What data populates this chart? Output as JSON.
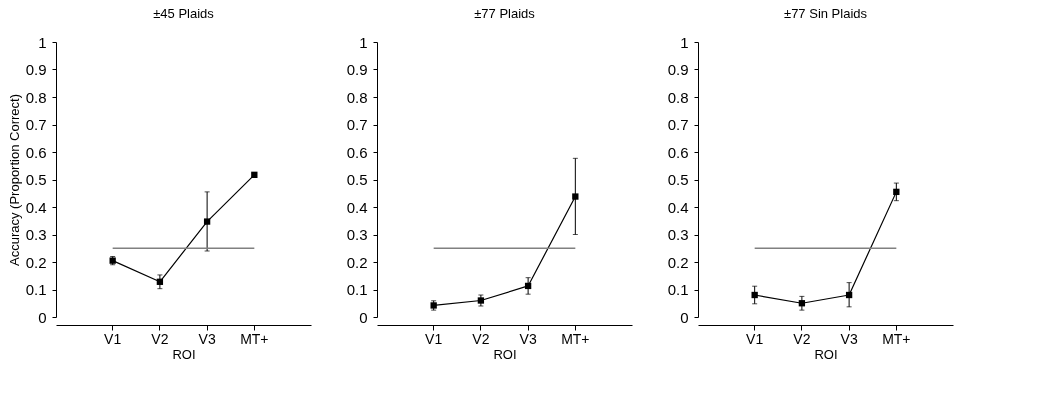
{
  "chart_data": [
    {
      "type": "line",
      "title": "±45 Plaids",
      "xlabel": "ROI",
      "ylabel": "Accuracy (Proportion Correct)",
      "categories": [
        "V1",
        "V2",
        "V3",
        "MT+"
      ],
      "ylim": [
        0,
        1
      ],
      "yticks": [
        0,
        0.1,
        0.2,
        0.3,
        0.4,
        0.5,
        0.6,
        0.7,
        0.8,
        0.9,
        1
      ],
      "marker": "square",
      "grid": false,
      "series": [
        {
          "color": "#000000",
          "values": [
            0.205,
            0.128,
            0.347,
            0.517
          ],
          "errors": [
            0.015,
            0.025,
            [
              0.24,
              0.455
            ],
            0.005
          ]
        }
      ],
      "ref_lines": [
        {
          "axis": "y",
          "value": 0.25,
          "color": "#808080"
        }
      ]
    },
    {
      "type": "line",
      "title": "±77 Plaids",
      "xlabel": "ROI",
      "categories": [
        "V1",
        "V2",
        "V3",
        "MT+"
      ],
      "ylim": [
        0,
        1
      ],
      "yticks": [
        0,
        0.1,
        0.2,
        0.3,
        0.4,
        0.5,
        0.6,
        0.7,
        0.8,
        0.9,
        1
      ],
      "marker": "square",
      "grid": false,
      "series": [
        {
          "color": "#000000",
          "values": [
            0.042,
            0.06,
            0.113,
            0.438
          ],
          "errors": [
            0.017,
            0.02,
            0.03,
            [
              0.3,
              0.577
            ]
          ]
        }
      ],
      "ref_lines": [
        {
          "axis": "y",
          "value": 0.25,
          "color": "#808080"
        }
      ]
    },
    {
      "type": "line",
      "title": "±77 Sin Plaids",
      "xlabel": "ROI",
      "categories": [
        "V1",
        "V2",
        "V3",
        "MT+"
      ],
      "ylim": [
        0,
        1
      ],
      "yticks": [
        0,
        0.1,
        0.2,
        0.3,
        0.4,
        0.5,
        0.6,
        0.7,
        0.8,
        0.9,
        1
      ],
      "marker": "square",
      "grid": false,
      "series": [
        {
          "color": "#000000",
          "values": [
            0.08,
            0.05,
            0.08,
            0.455
          ],
          "errors": [
            0.032,
            0.025,
            [
              0.037,
              0.125
            ],
            0.032
          ]
        }
      ],
      "ref_lines": [
        {
          "axis": "y",
          "value": 0.25,
          "color": "#808080"
        }
      ]
    }
  ]
}
